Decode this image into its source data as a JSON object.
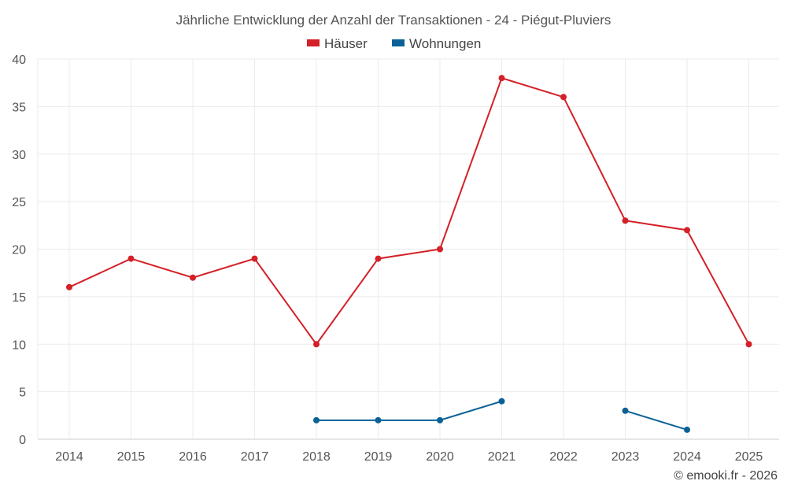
{
  "chart_data": {
    "type": "line",
    "title": "Jährliche Entwicklung der Anzahl der Transaktionen - 24 - Piégut-Pluviers",
    "xlabel": "",
    "ylabel": "",
    "categories": [
      "2014",
      "2015",
      "2016",
      "2017",
      "2018",
      "2019",
      "2020",
      "2021",
      "2022",
      "2023",
      "2024",
      "2025"
    ],
    "ylim": [
      0,
      40
    ],
    "yticks": [
      "0",
      "5",
      "10",
      "15",
      "20",
      "25",
      "30",
      "35",
      "40"
    ],
    "grid": true,
    "legend_position": "top-center",
    "series": [
      {
        "name": "Häuser",
        "color": "#d42027",
        "values": [
          16,
          19,
          17,
          19,
          10,
          19,
          20,
          38,
          36,
          23,
          22,
          10
        ]
      },
      {
        "name": "Wohnungen",
        "color": "#0a6196",
        "values": [
          null,
          null,
          null,
          null,
          2,
          2,
          2,
          4,
          null,
          3,
          1,
          null
        ]
      }
    ],
    "credit": "© emooki.fr - 2026"
  }
}
